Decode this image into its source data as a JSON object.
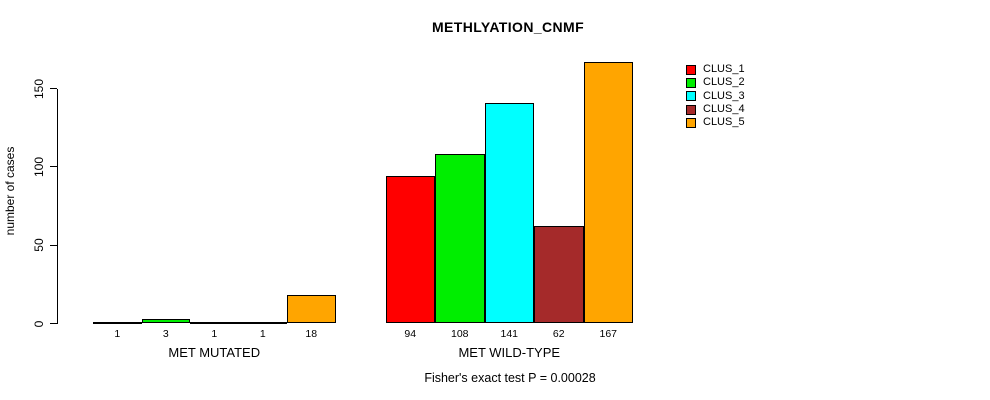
{
  "chart_data": {
    "type": "bar",
    "title": "METHLYATION_CNMF",
    "ylabel": "number of cases",
    "xlabel": "",
    "annotation": "Fisher's exact test P = 0.00028",
    "ylim": [
      0,
      167
    ],
    "yticks": [
      0,
      50,
      100,
      150
    ],
    "grid": false,
    "legend_position": "right",
    "bar_value_labels": true,
    "categories": [
      "MET MUTATED",
      "MET WILD-TYPE"
    ],
    "series": [
      {
        "name": "CLUS_1",
        "color": "#FF0000",
        "values": [
          1,
          94
        ]
      },
      {
        "name": "CLUS_2",
        "color": "#00EE00",
        "values": [
          3,
          108
        ]
      },
      {
        "name": "CLUS_3",
        "color": "#00FFFF",
        "values": [
          1,
          141
        ]
      },
      {
        "name": "CLUS_4",
        "color": "#A52A2A",
        "values": [
          1,
          62
        ]
      },
      {
        "name": "CLUS_5",
        "color": "#FFA500",
        "values": [
          18,
          167
        ]
      }
    ]
  },
  "colors": {
    "axis": "#000000",
    "text": "#000000",
    "background": "#FFFFFF"
  }
}
